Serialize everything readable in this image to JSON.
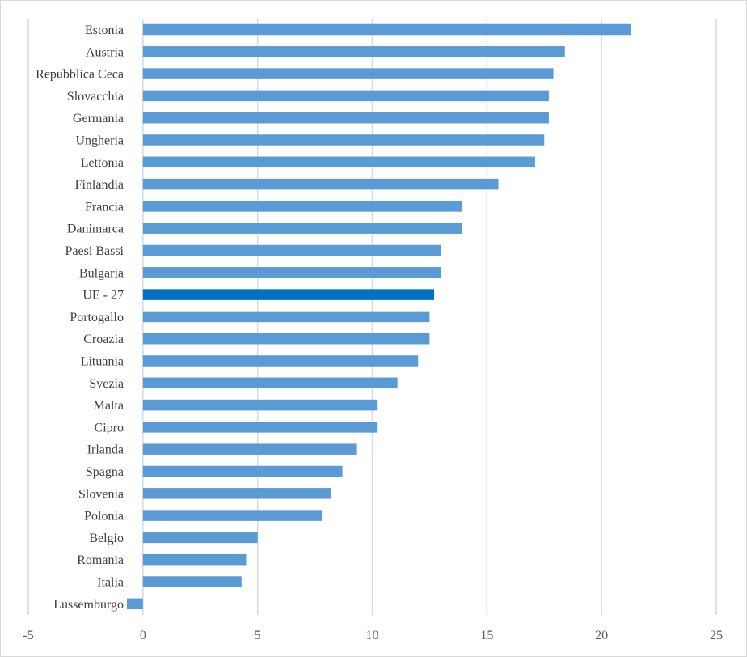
{
  "chart_data": {
    "type": "bar",
    "orientation": "horizontal",
    "title": "",
    "xlabel": "",
    "ylabel": "",
    "xlim": [
      -5,
      25
    ],
    "x_ticks": [
      -5,
      0,
      5,
      10,
      15,
      20,
      25
    ],
    "x_tick_labels": [
      "-5",
      "0",
      "5",
      "10",
      "15",
      "20",
      "25"
    ],
    "grid": "vertical",
    "legend": "none",
    "colors": {
      "bar": "#5b9bd5",
      "highlight": "#0070c0",
      "grid": "#d9d9d9"
    },
    "highlight_category": "UE - 27",
    "categories": [
      "Estonia",
      "Austria",
      "Repubblica Ceca",
      "Slovacchia",
      "Germania",
      "Ungheria",
      "Lettonia",
      "Finlandia",
      "Francia",
      "Danimarca",
      "Paesi Bassi",
      "Bulgaria",
      "UE - 27",
      "Portogallo",
      "Croazia",
      "Lituania",
      "Svezia",
      "Malta",
      "Cipro",
      "Irlanda",
      "Spagna",
      "Slovenia",
      "Polonia",
      "Belgio",
      "Romania",
      "Italia",
      "Lussemburgo"
    ],
    "values": [
      21.3,
      18.4,
      17.9,
      17.7,
      17.7,
      17.5,
      17.1,
      15.5,
      13.9,
      13.9,
      13.0,
      13.0,
      12.7,
      12.5,
      12.5,
      12.0,
      11.1,
      10.2,
      10.2,
      9.3,
      8.7,
      8.2,
      7.8,
      5.0,
      4.5,
      4.3,
      -0.7
    ]
  }
}
